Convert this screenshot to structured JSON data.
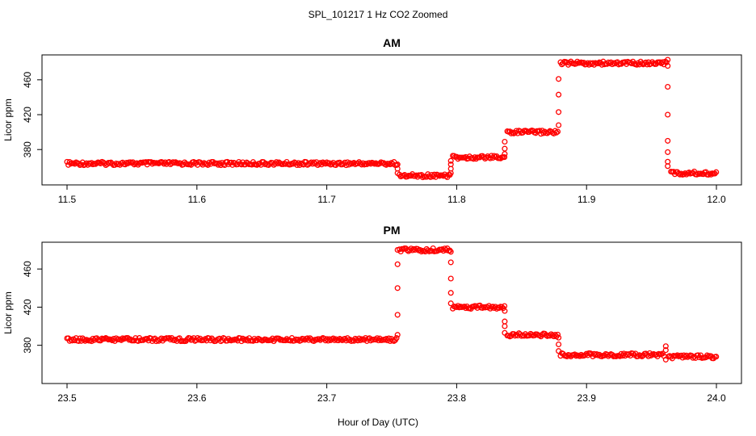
{
  "figure": {
    "suptitle": "SPL_101217  1 Hz CO2 Zoomed",
    "xlabel": "Hour of Day (UTC)"
  },
  "colors": {
    "points": "#ff0000",
    "axis": "#000000"
  },
  "chart_data": [
    {
      "type": "scatter",
      "title": "AM",
      "ylabel": "Licor ppm",
      "xlim": [
        11.5,
        12.0
      ],
      "ylim": [
        345,
        483
      ],
      "xticks": [
        "11.5",
        "11.6",
        "11.7",
        "11.8",
        "11.9",
        "12.0"
      ],
      "yticks": [
        "380",
        "420",
        "460"
      ],
      "marker": "open-circle",
      "segments": [
        {
          "x_start": 11.5,
          "x_end": 11.754,
          "y": 364
        },
        {
          "x_start": 11.756,
          "x_end": 11.795,
          "y": 350
        },
        {
          "x_start": 11.797,
          "x_end": 11.837,
          "y": 371
        },
        {
          "x_start": 11.839,
          "x_end": 11.878,
          "y": 400
        },
        {
          "x_start": 11.88,
          "x_end": 11.962,
          "y": 479
        },
        {
          "x_start": 11.965,
          "x_end": 12.0,
          "y": 353
        }
      ],
      "transitions": [
        {
          "x": 11.7545,
          "y": [
            363,
            358,
            353
          ]
        },
        {
          "x": 11.7955,
          "y": [
            353,
            358,
            363,
            367
          ]
        },
        {
          "x": 11.837,
          "y": [
            375,
            381,
            389
          ]
        },
        {
          "x": 11.8785,
          "y": [
            408,
            423,
            443,
            461
          ]
        },
        {
          "x": 11.9625,
          "y": [
            483,
            476,
            452,
            420,
            390,
            377,
            366,
            361
          ]
        }
      ]
    },
    {
      "type": "scatter",
      "title": "PM",
      "ylabel": "Licor ppm",
      "xlim": [
        23.5,
        24.0
      ],
      "ylim": [
        345,
        483
      ],
      "xticks": [
        "23.5",
        "23.6",
        "23.7",
        "23.8",
        "23.9",
        "24.0"
      ],
      "yticks": [
        "380",
        "420",
        "460"
      ],
      "marker": "open-circle",
      "segments": [
        {
          "x_start": 23.5,
          "x_end": 23.754,
          "y": 386
        },
        {
          "x_start": 23.756,
          "x_end": 23.795,
          "y": 480
        },
        {
          "x_start": 23.797,
          "x_end": 23.837,
          "y": 420
        },
        {
          "x_start": 23.839,
          "x_end": 23.878,
          "y": 391
        },
        {
          "x_start": 23.88,
          "x_end": 23.96,
          "y": 370
        },
        {
          "x_start": 23.963,
          "x_end": 24.0,
          "y": 368
        }
      ],
      "transitions": [
        {
          "x": 23.7545,
          "y": [
            391,
            412,
            440,
            465,
            480
          ]
        },
        {
          "x": 23.7955,
          "y": [
            478,
            467,
            450,
            435,
            424
          ]
        },
        {
          "x": 23.837,
          "y": [
            416,
            405,
            400,
            393
          ]
        },
        {
          "x": 23.8785,
          "y": [
            388,
            381,
            374
          ]
        },
        {
          "x": 23.961,
          "y": [
            379,
            375,
            365
          ]
        }
      ]
    }
  ]
}
